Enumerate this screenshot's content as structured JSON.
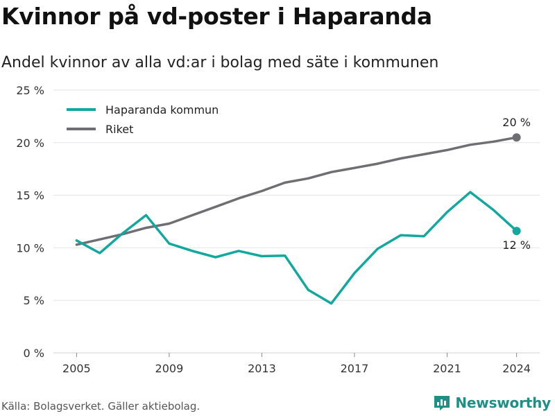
{
  "header": {
    "title": "Kvinnor på vd-poster i Haparanda",
    "subtitle": "Andel kvinnor av alla vd:ar i bolag med säte i kommunen"
  },
  "footer": {
    "source": "Källa: Bolagsverket. Gäller aktiebolag.",
    "brand": "Newsworthy"
  },
  "colors": {
    "haparanda": "#13a89e",
    "riket": "#6f6e73",
    "grid": "#e3e3e3",
    "brand": "#1f8f86"
  },
  "chart_data": {
    "type": "line",
    "x": [
      2005,
      2006,
      2007,
      2008,
      2009,
      2010,
      2011,
      2012,
      2013,
      2014,
      2015,
      2016,
      2017,
      2018,
      2019,
      2020,
      2021,
      2022,
      2023,
      2024
    ],
    "series": [
      {
        "name": "Haparanda kommun",
        "color": "#13a89e",
        "values": [
          10.7,
          9.5,
          11.4,
          13.1,
          10.4,
          9.7,
          9.1,
          9.7,
          9.2,
          9.25,
          6.0,
          4.7,
          7.6,
          9.9,
          11.2,
          11.1,
          13.4,
          15.3,
          13.6,
          11.6
        ],
        "end_label": "12 %"
      },
      {
        "name": "Riket",
        "color": "#6f6e73",
        "values": [
          10.3,
          10.8,
          11.3,
          11.9,
          12.3,
          13.1,
          13.9,
          14.7,
          15.4,
          16.2,
          16.6,
          17.2,
          17.6,
          18.0,
          18.5,
          18.9,
          19.3,
          19.8,
          20.1,
          20.5
        ],
        "end_label": "20 %"
      }
    ],
    "x_ticks": [
      2005,
      2009,
      2013,
      2017,
      2021,
      2024
    ],
    "y_ticks": [
      0,
      5,
      10,
      15,
      20,
      25
    ],
    "y_tick_labels": [
      "0 %",
      "5 %",
      "10 %",
      "15 %",
      "20 %",
      "25 %"
    ],
    "xlim": [
      2004,
      2025
    ],
    "ylim": [
      0,
      25
    ],
    "grid": true,
    "legend_position": "top-left",
    "xlabel": "",
    "ylabel": ""
  }
}
